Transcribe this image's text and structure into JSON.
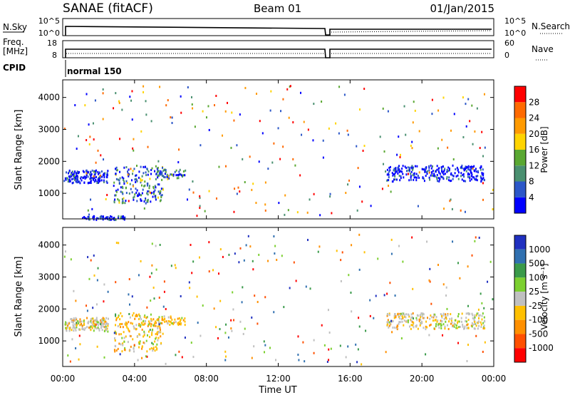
{
  "header": {
    "station": "SANAE (fitACF)",
    "beam": "Beam 01",
    "date": "01/Jan/2015"
  },
  "top_panels": {
    "nsky_label": "N.Sky",
    "nsky_ticks": [
      "10^5",
      "10^0"
    ],
    "nsearch_label": "N.Search",
    "nsearch_ticks": [
      "10^5",
      "10^0"
    ],
    "freq_label_line1": "Freq.",
    "freq_label_line2": "[MHz]",
    "freq_ticks": [
      "18",
      "8"
    ],
    "nave_label": "Nave",
    "nave_ticks": [
      "60",
      "0"
    ],
    "cpid_label": "CPID",
    "cpid_value": "normal 150"
  },
  "chart_data": [
    {
      "type": "heatmap",
      "name": "power",
      "ylabel": "Slant Range [km]",
      "xlabel": "",
      "ylim": [
        200,
        4550
      ],
      "yticks": [
        "1000",
        "2000",
        "3000",
        "4000"
      ],
      "colorbar": {
        "label": "Power [dB]",
        "ticks": [
          "4",
          "8",
          "12",
          "16",
          "20",
          "24",
          "28"
        ],
        "colors": [
          "#0000ff",
          "#2c57c8",
          "#4a9070",
          "#5aa832",
          "#ffd400",
          "#ff9a00",
          "#ff6a00",
          "#ff0000"
        ]
      },
      "features": [
        {
          "time_h": 0.3,
          "range_km": 1500,
          "level": "low"
        },
        {
          "time_h": 1.0,
          "range_km": 1600,
          "level": "low"
        },
        {
          "time_h": 3.5,
          "range_km": 1400,
          "level": "medium"
        },
        {
          "time_h": 5.0,
          "range_km": 1700,
          "level": "high"
        },
        {
          "time_h": 6.0,
          "range_km": 1600,
          "level": "medium"
        },
        {
          "time_h": 20.0,
          "range_km": 1500,
          "level": "low"
        },
        {
          "time_h": 22.5,
          "range_km": 1700,
          "level": "medium"
        }
      ]
    },
    {
      "type": "heatmap",
      "name": "velocity",
      "ylabel": "Slant Range [km]",
      "xlabel": "Time UT",
      "ylim": [
        200,
        4550
      ],
      "yticks": [
        "1000",
        "2000",
        "3000",
        "4000"
      ],
      "xticks": [
        "00:00",
        "04:00",
        "08:00",
        "12:00",
        "16:00",
        "20:00",
        "00:00"
      ],
      "colorbar": {
        "label": "Velocity [m s⁻¹]",
        "ticks": [
          "1000",
          "500",
          "100",
          "25",
          "-25",
          "-100",
          "-500",
          "-1000"
        ],
        "colors": [
          "#2030c0",
          "#3070b0",
          "#3a9a4a",
          "#7cd030",
          "#c0c0c0",
          "#ffc000",
          "#ff9000",
          "#ff5000",
          "#ff0000"
        ]
      }
    }
  ]
}
